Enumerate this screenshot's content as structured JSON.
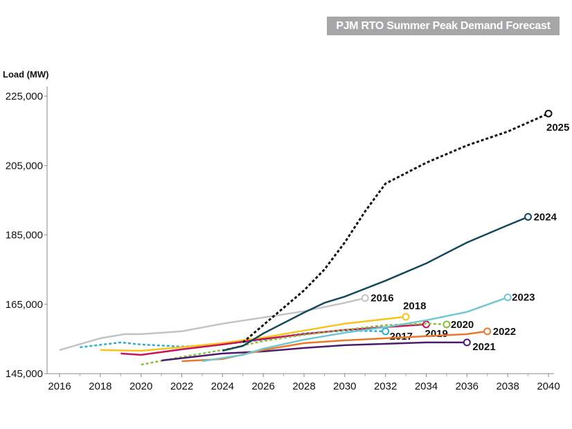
{
  "chart_data": {
    "type": "line",
    "title": "PJM RTO Summer Peak Demand Forecast",
    "ylabel": "Load (MW)",
    "xlabel": "",
    "xlim": [
      2016,
      2040
    ],
    "ylim": [
      145000,
      225000
    ],
    "xticks": [
      "2016",
      "2018",
      "2020",
      "2022",
      "2024",
      "2026",
      "2028",
      "2030",
      "2032",
      "2034",
      "2036",
      "2038",
      "2040"
    ],
    "yticks": [
      "145,000",
      "165,000",
      "185,000",
      "205,000",
      "225,000"
    ],
    "grid": false,
    "legend": "end-of-line labels",
    "series": [
      {
        "name": "2016",
        "color": "#c3c3c3",
        "dash": false,
        "points": [
          [
            2016,
            151800
          ],
          [
            2018,
            155200
          ],
          [
            2019.2,
            156400
          ],
          [
            2020,
            156400
          ],
          [
            2022,
            157200
          ],
          [
            2024,
            159400
          ],
          [
            2026,
            161200
          ],
          [
            2028,
            163000
          ],
          [
            2030,
            165400
          ],
          [
            2031,
            166800
          ]
        ]
      },
      {
        "name": "2017",
        "color": "#2aaed0",
        "dash": true,
        "points": [
          [
            2017,
            152600
          ],
          [
            2019,
            154000
          ],
          [
            2020,
            153400
          ],
          [
            2022,
            152800
          ],
          [
            2024,
            153400
          ],
          [
            2026,
            154800
          ],
          [
            2028,
            156600
          ],
          [
            2030,
            157400
          ],
          [
            2032,
            157200
          ]
        ]
      },
      {
        "name": "2018",
        "color": "#f7c21a",
        "dash": false,
        "points": [
          [
            2018,
            151800
          ],
          [
            2020,
            151600
          ],
          [
            2022,
            152600
          ],
          [
            2024,
            153800
          ],
          [
            2026,
            155400
          ],
          [
            2028,
            157400
          ],
          [
            2030,
            159400
          ],
          [
            2033,
            161400
          ]
        ]
      },
      {
        "name": "2019",
        "color": "#c8135a",
        "dash": false,
        "points": [
          [
            2019,
            150800
          ],
          [
            2020,
            150400
          ],
          [
            2022,
            152000
          ],
          [
            2024,
            153400
          ],
          [
            2026,
            155000
          ],
          [
            2028,
            156400
          ],
          [
            2030,
            157600
          ],
          [
            2034,
            159200
          ]
        ]
      },
      {
        "name": "2020",
        "color": "#8cbf3f",
        "dash": true,
        "points": [
          [
            2020,
            147600
          ],
          [
            2022,
            149800
          ],
          [
            2024,
            151800
          ],
          [
            2026,
            154400
          ],
          [
            2028,
            156200
          ],
          [
            2030,
            157600
          ],
          [
            2032,
            159000
          ],
          [
            2034,
            159400
          ],
          [
            2035,
            159200
          ]
        ]
      },
      {
        "name": "2021",
        "color": "#4b1c6e",
        "dash": false,
        "points": [
          [
            2021,
            148800
          ],
          [
            2024,
            150800
          ],
          [
            2026,
            151400
          ],
          [
            2028,
            152400
          ],
          [
            2030,
            153200
          ],
          [
            2032,
            153600
          ],
          [
            2034,
            154000
          ],
          [
            2036,
            154000
          ]
        ]
      },
      {
        "name": "2022",
        "color": "#e8782a",
        "dash": false,
        "points": [
          [
            2022,
            148600
          ],
          [
            2024,
            149200
          ],
          [
            2026,
            151800
          ],
          [
            2028,
            153800
          ],
          [
            2030,
            154600
          ],
          [
            2032,
            155200
          ],
          [
            2034,
            155800
          ],
          [
            2036,
            156400
          ],
          [
            2037,
            157200
          ]
        ]
      },
      {
        "name": "2023",
        "color": "#72c7cf",
        "dash": false,
        "points": [
          [
            2023,
            148600
          ],
          [
            2025,
            150400
          ],
          [
            2026,
            152200
          ],
          [
            2028,
            154800
          ],
          [
            2030,
            156800
          ],
          [
            2032,
            158400
          ],
          [
            2034,
            160400
          ],
          [
            2036,
            162800
          ],
          [
            2038,
            167000
          ]
        ]
      },
      {
        "name": "2024",
        "color": "#12495a",
        "dash": false,
        "points": [
          [
            2024,
            151600
          ],
          [
            2025,
            153000
          ],
          [
            2026,
            156600
          ],
          [
            2028,
            162600
          ],
          [
            2029,
            165400
          ],
          [
            2030,
            167200
          ],
          [
            2032,
            171800
          ],
          [
            2034,
            176800
          ],
          [
            2036,
            182800
          ],
          [
            2038,
            187800
          ],
          [
            2039,
            190200
          ]
        ]
      },
      {
        "name": "2025",
        "color": "#111111",
        "dash": true,
        "points": [
          [
            2025,
            154000
          ],
          [
            2026,
            159000
          ],
          [
            2028,
            169000
          ],
          [
            2029,
            175000
          ],
          [
            2030,
            182800
          ],
          [
            2031,
            191800
          ],
          [
            2032,
            199800
          ],
          [
            2033,
            202800
          ],
          [
            2034,
            205800
          ],
          [
            2036,
            210800
          ],
          [
            2038,
            214800
          ],
          [
            2040,
            220000
          ]
        ]
      }
    ]
  }
}
